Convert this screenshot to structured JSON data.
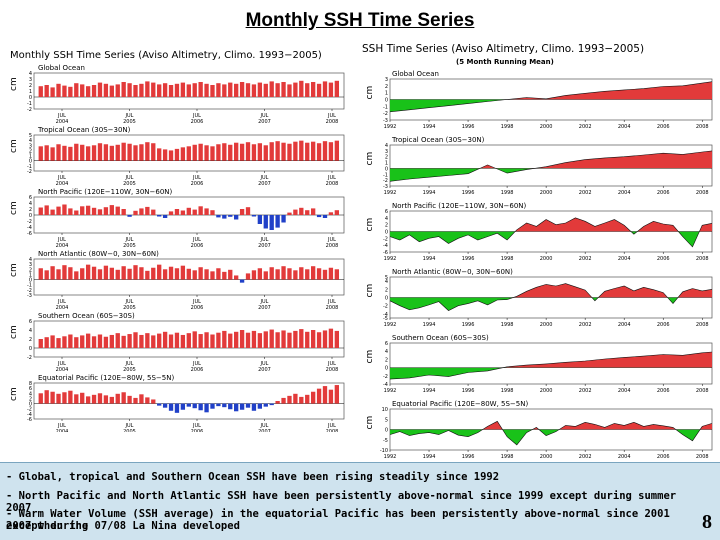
{
  "slide": {
    "title": "Monthly SSH Time Series",
    "page_number": "8",
    "notes": [
      "- Global, tropical and Southern Ocean SSH have been rising steadily since 1992",
      "- North Pacific and North Atlantic SSH have been persistently above-normal since 1999 except during summer 2007",
      "- Warm Water Volume (SSH average) in the equatorial Pacific has been persistently above-normal since 2001 except during",
      "2007 when the 07/08 La Nina developed"
    ]
  },
  "colors": {
    "positive": "#e23a3a",
    "negative_bar": "#2040c8",
    "negative_fill": "#19c219",
    "line": "#111111"
  },
  "chart_data": [
    {
      "type": "bar",
      "title": "Monthly SSH Time Series (Aviso Altimetry, Climo. 1993−2005)",
      "ylabel": "cm",
      "x_ticks": [
        "JUL 2004",
        "JUL 2005",
        "JUL 2006",
        "JUL 2007",
        "JUL 2008"
      ],
      "panels": [
        {
          "name": "Global Ocean",
          "ylim": [
            -2,
            4
          ],
          "y_ticks": [
            -2,
            -1,
            0,
            1,
            2,
            3,
            4
          ],
          "values": [
            1.8,
            2.0,
            1.6,
            2.2,
            1.9,
            1.7,
            2.3,
            2.1,
            1.8,
            2.0,
            2.4,
            2.2,
            1.9,
            2.1,
            2.5,
            2.3,
            2.0,
            2.2,
            2.6,
            2.4,
            2.1,
            2.3,
            2.0,
            2.2,
            2.4,
            2.1,
            2.3,
            2.5,
            2.2,
            2.0,
            2.3,
            2.1,
            2.4,
            2.2,
            2.5,
            2.3,
            2.1,
            2.4,
            2.2,
            2.6,
            2.3,
            2.5,
            2.1,
            2.4,
            2.7,
            2.3,
            2.5,
            2.2,
            2.6,
            2.4,
            2.7
          ]
        },
        {
          "name": "Tropical Ocean (30S−30N)",
          "ylim": [
            -2,
            5
          ],
          "y_ticks": [
            -2,
            -1,
            0,
            1,
            2,
            3,
            4,
            5
          ],
          "values": [
            2.8,
            3.0,
            2.6,
            3.2,
            2.9,
            2.7,
            3.3,
            3.1,
            2.8,
            3.0,
            3.4,
            3.2,
            2.9,
            3.1,
            3.5,
            3.3,
            3.0,
            3.2,
            3.6,
            3.4,
            2.4,
            2.2,
            2.0,
            2.3,
            2.6,
            2.8,
            3.1,
            3.3,
            3.0,
            2.8,
            3.2,
            3.4,
            3.1,
            3.5,
            3.3,
            3.6,
            3.2,
            3.4,
            3.0,
            3.6,
            3.8,
            3.5,
            3.3,
            3.7,
            3.9,
            3.5,
            3.7,
            3.4,
            3.8,
            3.6,
            3.9
          ]
        },
        {
          "name": "North Pacific (120E−110W, 30N−60N)",
          "ylim": [
            -6,
            6
          ],
          "y_ticks": [
            -6,
            -4,
            -2,
            0,
            2,
            4,
            6
          ],
          "values": [
            2.5,
            3.2,
            1.8,
            2.8,
            3.5,
            2.2,
            1.5,
            2.9,
            3.1,
            2.4,
            1.9,
            2.6,
            3.3,
            2.8,
            2.0,
            -0.6,
            1.4,
            2.2,
            2.7,
            1.8,
            -0.5,
            -1.0,
            1.2,
            2.0,
            1.5,
            2.4,
            1.8,
            2.9,
            2.2,
            1.6,
            -0.8,
            -1.2,
            -0.6,
            -1.5,
            2.0,
            2.6,
            -0.5,
            -3.0,
            -4.5,
            -5.0,
            -4.2,
            -2.5,
            0.8,
            1.8,
            2.4,
            1.6,
            2.2,
            -0.7,
            -1.0,
            0.9,
            1.6
          ]
        },
        {
          "name": "North Atlantic (80W−0, 30N−60N)",
          "ylim": [
            -3,
            4
          ],
          "y_ticks": [
            -3,
            -2,
            -1,
            0,
            1,
            2,
            3,
            4
          ],
          "values": [
            2.2,
            1.8,
            2.6,
            2.0,
            2.8,
            2.4,
            1.6,
            2.2,
            2.9,
            2.5,
            2.0,
            2.7,
            2.3,
            1.9,
            2.6,
            2.1,
            2.8,
            2.4,
            1.7,
            2.3,
            2.9,
            2.0,
            2.5,
            2.2,
            2.7,
            2.1,
            1.8,
            2.4,
            2.0,
            1.6,
            2.2,
            1.5,
            1.9,
            0.8,
            -0.6,
            1.2,
            1.8,
            2.2,
            1.6,
            2.4,
            2.0,
            2.6,
            2.2,
            1.8,
            2.4,
            2.0,
            2.6,
            2.2,
            1.9,
            2.3,
            2.0
          ]
        },
        {
          "name": "Southern Ocean (60S−30S)",
          "ylim": [
            -2,
            6
          ],
          "y_ticks": [
            -2,
            0,
            2,
            4,
            6
          ],
          "values": [
            2.0,
            2.4,
            2.8,
            2.2,
            2.6,
            3.0,
            2.4,
            2.8,
            3.2,
            2.6,
            3.0,
            2.5,
            2.9,
            3.3,
            2.7,
            3.1,
            3.5,
            2.9,
            3.3,
            2.8,
            3.2,
            3.6,
            3.0,
            3.4,
            2.9,
            3.3,
            3.7,
            3.1,
            3.5,
            3.0,
            3.4,
            3.8,
            3.2,
            3.6,
            4.0,
            3.4,
            3.8,
            3.3,
            3.7,
            4.1,
            3.5,
            3.9,
            3.4,
            3.8,
            4.2,
            3.6,
            4.0,
            3.5,
            3.9,
            4.3,
            3.8
          ]
        },
        {
          "name": "Equatorial Pacific (120E−80W, 5S−5N)",
          "ylim": [
            -6,
            8
          ],
          "y_ticks": [
            -6,
            -4,
            -2,
            0,
            2,
            4,
            6,
            8
          ],
          "values": [
            4.0,
            5.2,
            4.6,
            3.8,
            4.4,
            5.0,
            3.6,
            4.2,
            2.8,
            3.4,
            4.0,
            3.2,
            2.6,
            3.8,
            4.4,
            3.0,
            2.2,
            3.6,
            2.4,
            1.6,
            -0.8,
            -1.6,
            -2.8,
            -3.6,
            -2.4,
            -1.2,
            -1.8,
            -2.6,
            -3.4,
            -2.0,
            -1.0,
            -1.4,
            -2.2,
            -3.0,
            -2.4,
            -1.6,
            -2.8,
            -2.0,
            -1.2,
            -0.6,
            1.0,
            2.2,
            3.0,
            3.8,
            2.6,
            3.4,
            4.6,
            5.8,
            6.8,
            5.4,
            7.2
          ]
        }
      ]
    },
    {
      "type": "area",
      "title": "SSH Time Series (Aviso Altimetry, Climo. 1993−2005)",
      "subtitle": "(5 Month Running Mean)",
      "ylabel": "cm",
      "x_ticks": [
        "1992",
        "1994",
        "1996",
        "1998",
        "2000",
        "2002",
        "2004",
        "2006",
        "2008"
      ],
      "x_range": [
        1992,
        2008.5
      ],
      "panels": [
        {
          "name": "Global Ocean",
          "ylim": [
            -3,
            3
          ],
          "y_ticks": [
            -3,
            -2,
            -1,
            0,
            1,
            2,
            3
          ],
          "x": [
            1992,
            1993,
            1994,
            1995,
            1996,
            1997,
            1998,
            1999,
            2000,
            2001,
            2002,
            2003,
            2004,
            2005,
            2006,
            2007,
            2008,
            2008.5
          ],
          "values": [
            -1.8,
            -1.5,
            -1.2,
            -0.9,
            -0.6,
            -0.3,
            0.0,
            0.3,
            0.1,
            0.6,
            0.9,
            1.2,
            1.4,
            1.6,
            1.9,
            2.0,
            2.4,
            2.6
          ]
        },
        {
          "name": "Tropical Ocean (30S−30N)",
          "ylim": [
            -3,
            4
          ],
          "y_ticks": [
            -3,
            -2,
            -1,
            0,
            1,
            2,
            3,
            4
          ],
          "x": [
            1992,
            1993,
            1994,
            1995,
            1996,
            1997,
            1998,
            1999,
            2000,
            2001,
            2002,
            2003,
            2004,
            2005,
            2006,
            2007,
            2008,
            2008.5
          ],
          "values": [
            -2.2,
            -1.8,
            -1.5,
            -1.2,
            -0.9,
            0.6,
            -0.8,
            -0.2,
            0.3,
            1.0,
            1.5,
            1.8,
            2.0,
            2.3,
            2.6,
            2.4,
            2.8,
            3.0
          ]
        },
        {
          "name": "North Pacific (120E−110W, 30N−60N)",
          "ylim": [
            -6,
            6
          ],
          "y_ticks": [
            -6,
            -4,
            -2,
            0,
            2,
            4,
            6
          ],
          "x": [
            1992,
            1992.5,
            1993,
            1993.5,
            1994,
            1994.5,
            1995,
            1995.5,
            1996,
            1996.5,
            1997,
            1997.5,
            1998,
            1998.5,
            1999,
            1999.5,
            2000,
            2000.5,
            2001,
            2001.5,
            2002,
            2002.5,
            2003,
            2003.5,
            2004,
            2004.5,
            2005,
            2005.5,
            2006,
            2006.5,
            2007,
            2007.5,
            2008,
            2008.5
          ],
          "values": [
            -1.5,
            -2.5,
            -1.0,
            -3.0,
            -2.0,
            -1.5,
            -3.5,
            -2.0,
            -1.0,
            -2.5,
            -1.5,
            -0.5,
            -2.5,
            0.5,
            2.5,
            1.5,
            3.5,
            2.0,
            2.5,
            4.0,
            3.0,
            1.5,
            2.5,
            3.5,
            1.8,
            -0.8,
            1.5,
            3.0,
            2.2,
            1.8,
            -1.5,
            -4.5,
            1.8,
            2.4
          ]
        },
        {
          "name": "North Atlantic (80W−0, 30N−60N)",
          "ylim": [
            -5,
            5
          ],
          "y_ticks": [
            -5,
            -4,
            -2,
            0,
            2,
            4,
            5
          ],
          "x": [
            1992,
            1992.5,
            1993,
            1993.5,
            1994,
            1994.5,
            1995,
            1995.5,
            1996,
            1996.5,
            1997,
            1997.5,
            1998,
            1998.5,
            1999,
            1999.5,
            2000,
            2000.5,
            2001,
            2001.5,
            2002,
            2002.5,
            2003,
            2003.5,
            2004,
            2004.5,
            2005,
            2005.5,
            2006,
            2006.5,
            2007,
            2007.5,
            2008,
            2008.5
          ],
          "values": [
            -0.8,
            -2.0,
            -3.0,
            -2.5,
            -1.8,
            -1.0,
            -3.2,
            -2.0,
            -1.5,
            -0.8,
            -1.8,
            -0.6,
            -0.5,
            0.3,
            1.5,
            2.5,
            3.2,
            2.8,
            3.4,
            2.6,
            1.8,
            -0.8,
            1.5,
            2.2,
            2.8,
            1.6,
            2.5,
            1.9,
            1.2,
            -1.5,
            1.4,
            2.2,
            1.6,
            2.0
          ]
        },
        {
          "name": "Southern Ocean (60S−30S)",
          "ylim": [
            -4,
            6
          ],
          "y_ticks": [
            -4,
            -2,
            0,
            2,
            4,
            6
          ],
          "x": [
            1992,
            1993,
            1994,
            1995,
            1996,
            1997,
            1998,
            1999,
            2000,
            2001,
            2002,
            2003,
            2004,
            2005,
            2006,
            2007,
            2008,
            2008.5
          ],
          "values": [
            -2.8,
            -2.5,
            -1.8,
            -2.2,
            -1.2,
            -0.8,
            0.2,
            0.6,
            0.9,
            1.3,
            1.6,
            2.1,
            2.5,
            2.8,
            3.2,
            3.0,
            3.6,
            3.8
          ]
        },
        {
          "name": "Equatorial Pacific (120E−80W, 5S−5N)",
          "ylim": [
            -10,
            10
          ],
          "y_ticks": [
            -10,
            -5,
            0,
            5,
            10
          ],
          "x": [
            1992,
            1992.5,
            1993,
            1993.5,
            1994,
            1994.5,
            1995,
            1995.5,
            1996,
            1996.5,
            1997,
            1997.5,
            1998,
            1998.5,
            1999,
            1999.5,
            2000,
            2000.5,
            2001,
            2001.5,
            2002,
            2002.5,
            2003,
            2003.5,
            2004,
            2004.5,
            2005,
            2005.5,
            2006,
            2006.5,
            2007,
            2007.5,
            2008,
            2008.5
          ],
          "values": [
            -2.5,
            -1.0,
            -3.0,
            -2.0,
            -1.5,
            -2.5,
            -0.5,
            -2.8,
            -3.5,
            -1.5,
            1.5,
            4.0,
            -3.5,
            -7.5,
            -1.5,
            1.0,
            -3.0,
            -1.0,
            2.0,
            1.5,
            3.5,
            2.5,
            1.0,
            3.0,
            2.0,
            3.5,
            1.5,
            2.5,
            1.8,
            1.0,
            -2.5,
            -5.5,
            1.5,
            3.0
          ]
        }
      ]
    }
  ]
}
